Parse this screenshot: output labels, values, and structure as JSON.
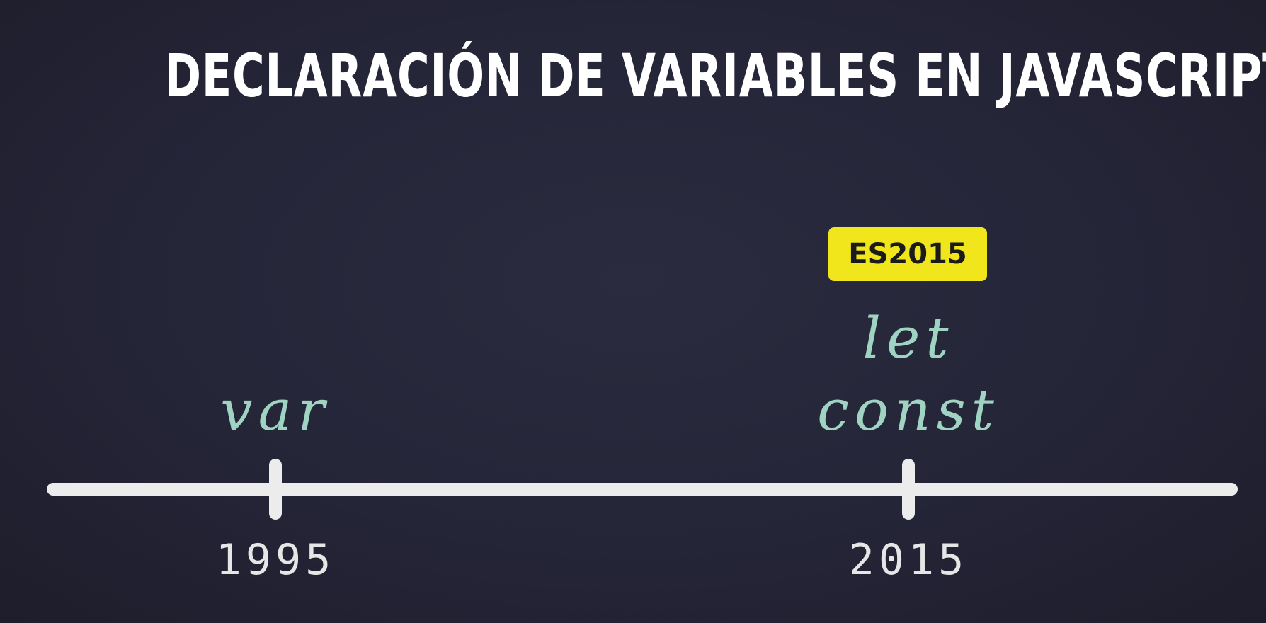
{
  "title": "DECLARACIÓN DE VARIABLES EN JAVASCRIPT",
  "colors": {
    "background": "#252538",
    "title": "#ffffff",
    "keyword": "#9fd3c2",
    "timeline": "#ececec",
    "badge_bg": "#f1e51b",
    "badge_text": "#1b1b1b"
  },
  "timeline": {
    "points": [
      {
        "year": "1995",
        "keywords": [
          "var"
        ]
      },
      {
        "year": "2015",
        "keywords": [
          "let",
          "const"
        ],
        "badge": "ES2015"
      }
    ]
  }
}
